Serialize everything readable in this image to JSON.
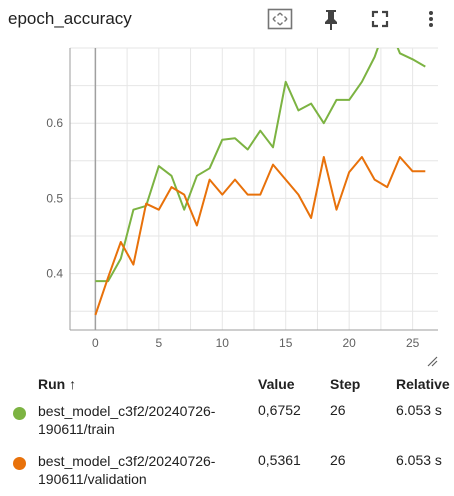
{
  "header": {
    "title": "epoch_accuracy",
    "fit_icon": "fit-to-domain-icon",
    "pin_icon": "pin-icon",
    "fullscreen_icon": "fullscreen-icon",
    "more_icon": "more-vert-icon"
  },
  "colors": {
    "train": "#7cb342",
    "validation": "#e8710a",
    "grid": "#e6e6e6",
    "axis": "#9e9e9e"
  },
  "chart_data": {
    "type": "line",
    "title": "epoch_accuracy",
    "xlim": [
      -2,
      27
    ],
    "ylim": [
      0.325,
      0.7
    ],
    "xticks": [
      0,
      5,
      10,
      15,
      20,
      25
    ],
    "yticks": [
      0.4,
      0.5,
      0.6
    ],
    "ytick_labels": [
      "0.4",
      "0.5",
      "0.6"
    ],
    "grid": true,
    "x": [
      0,
      1,
      2,
      3,
      4,
      5,
      6,
      7,
      8,
      9,
      10,
      11,
      12,
      13,
      14,
      15,
      16,
      17,
      18,
      19,
      20,
      21,
      22,
      23,
      24,
      25,
      26
    ],
    "series": [
      {
        "name": "best_model_c3f2/20240726-190611/train",
        "values": [
          0.39,
          0.39,
          0.42,
          0.485,
          0.49,
          0.543,
          0.53,
          0.485,
          0.53,
          0.54,
          0.578,
          0.58,
          0.565,
          0.59,
          0.568,
          0.655,
          0.617,
          0.626,
          0.6,
          0.631,
          0.631,
          0.655,
          0.688,
          0.735,
          0.693,
          0.685,
          0.6752
        ]
      },
      {
        "name": "best_model_c3f2/20240726-190611/validation",
        "values": [
          0.345,
          0.395,
          0.442,
          0.412,
          0.493,
          0.485,
          0.515,
          0.505,
          0.464,
          0.525,
          0.505,
          0.525,
          0.505,
          0.505,
          0.545,
          0.525,
          0.505,
          0.474,
          0.555,
          0.485,
          0.535,
          0.555,
          0.525,
          0.515,
          0.555,
          0.5361,
          0.5361
        ]
      }
    ]
  },
  "table": {
    "headers": {
      "run": "Run",
      "sort_icon": "↑",
      "value": "Value",
      "step": "Step",
      "relative": "Relative"
    },
    "rows": [
      {
        "name": "best_model_c3f2/20240726-190611/train",
        "value": "0,6752",
        "step": "26",
        "relative": "6.053 s"
      },
      {
        "name": "best_model_c3f2/20240726-190611/validation",
        "value": "0,5361",
        "step": "26",
        "relative": "6.053 s"
      }
    ]
  }
}
